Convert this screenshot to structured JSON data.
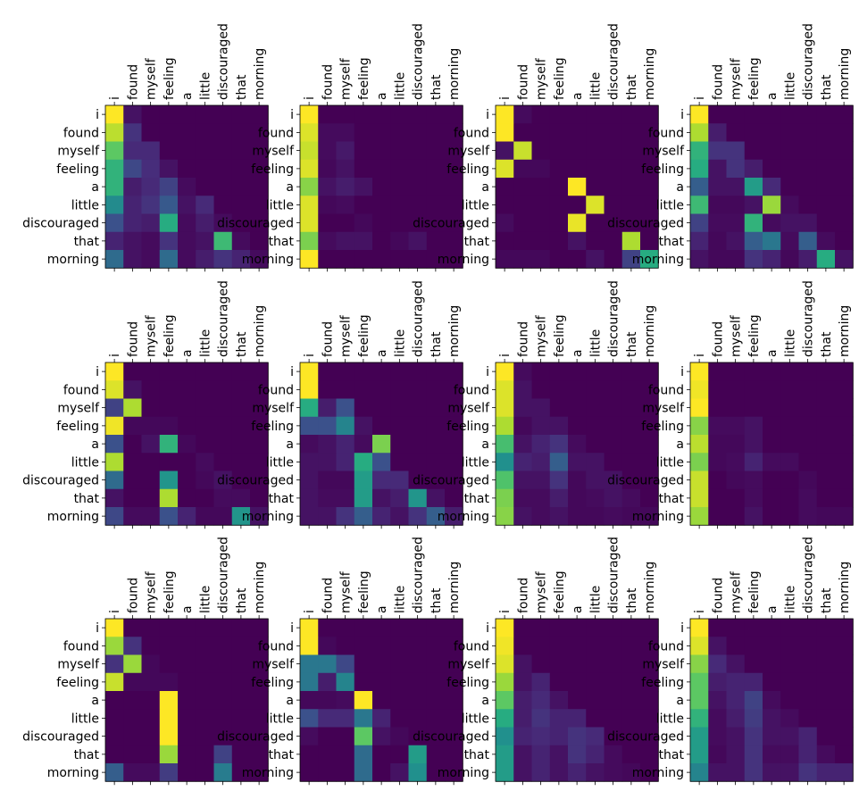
{
  "figure": {
    "background": "#ffffff",
    "colormap": "viridis",
    "colorscale": [
      "#440154",
      "#472c7a",
      "#3b518b",
      "#2c718e",
      "#21908d",
      "#27ad81",
      "#5cc863",
      "#aadc32",
      "#fde725"
    ],
    "ncols": 4,
    "nrows": 3
  },
  "chart_data": {
    "type": "heatmap",
    "xticklabels": [
      "i",
      "found",
      "myself",
      "feeling",
      "a",
      "little",
      "discouraged",
      "that",
      "morning"
    ],
    "yticklabels": [
      "i",
      "found",
      "myself",
      "feeling",
      "a",
      "little",
      "discouraged",
      "that",
      "morning"
    ],
    "vmin": 0,
    "vmax": 1,
    "xaxis_position": "top",
    "grid": false,
    "legend": "none",
    "heads": [
      [
        [
          1.0,
          0.05,
          0.0,
          0.0,
          0.0,
          0.0,
          0.0,
          0.0,
          0.0
        ],
        [
          0.9,
          0.15,
          0.0,
          0.0,
          0.0,
          0.0,
          0.0,
          0.0,
          0.0
        ],
        [
          0.75,
          0.12,
          0.12,
          0.0,
          0.0,
          0.0,
          0.0,
          0.0,
          0.0
        ],
        [
          0.65,
          0.22,
          0.13,
          0.05,
          0.0,
          0.0,
          0.0,
          0.0,
          0.0
        ],
        [
          0.65,
          0.08,
          0.12,
          0.2,
          0.03,
          0.0,
          0.0,
          0.0,
          0.0
        ],
        [
          0.48,
          0.1,
          0.15,
          0.28,
          0.05,
          0.12,
          0.0,
          0.0,
          0.0
        ],
        [
          0.25,
          0.1,
          0.08,
          0.62,
          0.03,
          0.08,
          0.03,
          0.0,
          0.0
        ],
        [
          0.1,
          0.05,
          0.03,
          0.15,
          0.03,
          0.05,
          0.68,
          0.03,
          0.0
        ],
        [
          0.35,
          0.05,
          0.03,
          0.35,
          0.03,
          0.08,
          0.15,
          0.1,
          0.03
        ]
      ],
      [
        [
          1.0,
          0.0,
          0.0,
          0.0,
          0.0,
          0.0,
          0.0,
          0.0,
          0.0
        ],
        [
          0.95,
          0.03,
          0.03,
          0.0,
          0.0,
          0.0,
          0.0,
          0.0,
          0.0
        ],
        [
          0.92,
          0.03,
          0.07,
          0.0,
          0.0,
          0.0,
          0.0,
          0.0,
          0.0
        ],
        [
          0.95,
          0.02,
          0.05,
          0.0,
          0.0,
          0.0,
          0.0,
          0.0,
          0.0
        ],
        [
          0.82,
          0.05,
          0.08,
          0.05,
          0.0,
          0.0,
          0.0,
          0.0,
          0.0
        ],
        [
          0.95,
          0.02,
          0.03,
          0.0,
          0.0,
          0.0,
          0.0,
          0.0,
          0.0
        ],
        [
          0.95,
          0.0,
          0.0,
          0.02,
          0.0,
          0.0,
          0.0,
          0.0,
          0.0
        ],
        [
          0.8,
          0.03,
          0.05,
          0.05,
          0.0,
          0.02,
          0.05,
          0.0,
          0.0
        ],
        [
          1.0,
          0.0,
          0.0,
          0.0,
          0.0,
          0.0,
          0.0,
          0.0,
          0.0
        ]
      ],
      [
        [
          1.0,
          0.03,
          0.0,
          0.0,
          0.0,
          0.0,
          0.0,
          0.0,
          0.0
        ],
        [
          1.0,
          0.0,
          0.0,
          0.0,
          0.0,
          0.0,
          0.0,
          0.0,
          0.0
        ],
        [
          0.05,
          0.92,
          0.0,
          0.0,
          0.0,
          0.0,
          0.0,
          0.0,
          0.0
        ],
        [
          0.95,
          0.02,
          0.02,
          0.0,
          0.0,
          0.0,
          0.0,
          0.0,
          0.0
        ],
        [
          0.0,
          0.0,
          0.0,
          0.0,
          1.0,
          0.0,
          0.0,
          0.0,
          0.0
        ],
        [
          0.0,
          0.0,
          0.0,
          0.0,
          0.0,
          0.95,
          0.0,
          0.0,
          0.0
        ],
        [
          0.03,
          0.0,
          0.0,
          0.0,
          0.97,
          0.0,
          0.0,
          0.0,
          0.0
        ],
        [
          0.0,
          0.0,
          0.0,
          0.0,
          0.05,
          0.0,
          0.0,
          0.88,
          0.0
        ],
        [
          0.02,
          0.02,
          0.02,
          0.0,
          0.0,
          0.05,
          0.0,
          0.2,
          0.62
        ]
      ],
      [
        [
          1.0,
          0.0,
          0.0,
          0.0,
          0.0,
          0.0,
          0.0,
          0.0,
          0.0
        ],
        [
          0.88,
          0.08,
          0.0,
          0.0,
          0.0,
          0.0,
          0.0,
          0.0,
          0.0
        ],
        [
          0.65,
          0.15,
          0.15,
          0.0,
          0.0,
          0.0,
          0.0,
          0.0,
          0.0
        ],
        [
          0.62,
          0.05,
          0.15,
          0.08,
          0.0,
          0.0,
          0.0,
          0.0,
          0.0
        ],
        [
          0.3,
          0.05,
          0.05,
          0.55,
          0.12,
          0.0,
          0.0,
          0.0,
          0.0
        ],
        [
          0.68,
          0.02,
          0.02,
          0.05,
          0.85,
          0.03,
          0.0,
          0.0,
          0.0
        ],
        [
          0.2,
          0.03,
          0.03,
          0.65,
          0.03,
          0.05,
          0.05,
          0.0,
          0.0
        ],
        [
          0.1,
          0.02,
          0.05,
          0.3,
          0.4,
          0.03,
          0.3,
          0.03,
          0.0
        ],
        [
          0.05,
          0.02,
          0.02,
          0.15,
          0.1,
          0.02,
          0.08,
          0.62,
          0.05
        ]
      ],
      [
        [
          1.0,
          0.0,
          0.0,
          0.0,
          0.0,
          0.0,
          0.0,
          0.0,
          0.0
        ],
        [
          0.95,
          0.05,
          0.0,
          0.0,
          0.0,
          0.0,
          0.0,
          0.0,
          0.0
        ],
        [
          0.2,
          0.88,
          0.0,
          0.0,
          0.0,
          0.0,
          0.0,
          0.0,
          0.0
        ],
        [
          0.98,
          0.02,
          0.02,
          0.02,
          0.0,
          0.0,
          0.0,
          0.0,
          0.0
        ],
        [
          0.25,
          0.0,
          0.05,
          0.65,
          0.02,
          0.0,
          0.0,
          0.0,
          0.0
        ],
        [
          0.88,
          0.0,
          0.0,
          0.0,
          0.0,
          0.03,
          0.0,
          0.0,
          0.0
        ],
        [
          0.35,
          0.0,
          0.0,
          0.52,
          0.0,
          0.02,
          0.05,
          0.0,
          0.0
        ],
        [
          0.05,
          0.0,
          0.0,
          0.88,
          0.0,
          0.0,
          0.03,
          0.03,
          0.0
        ],
        [
          0.22,
          0.03,
          0.03,
          0.25,
          0.1,
          0.02,
          0.02,
          0.52,
          0.05
        ]
      ],
      [
        [
          1.0,
          0.0,
          0.0,
          0.0,
          0.0,
          0.0,
          0.0,
          0.0,
          0.0
        ],
        [
          1.0,
          0.0,
          0.0,
          0.0,
          0.0,
          0.0,
          0.0,
          0.0,
          0.0
        ],
        [
          0.62,
          0.08,
          0.25,
          0.0,
          0.0,
          0.0,
          0.0,
          0.0,
          0.0
        ],
        [
          0.25,
          0.25,
          0.45,
          0.05,
          0.0,
          0.0,
          0.0,
          0.0,
          0.0
        ],
        [
          0.03,
          0.05,
          0.1,
          0.03,
          0.8,
          0.0,
          0.0,
          0.0,
          0.0
        ],
        [
          0.05,
          0.05,
          0.1,
          0.62,
          0.25,
          0.0,
          0.0,
          0.0,
          0.0
        ],
        [
          0.05,
          0.02,
          0.02,
          0.55,
          0.12,
          0.12,
          0.0,
          0.0,
          0.0
        ],
        [
          0.05,
          0.03,
          0.03,
          0.55,
          0.05,
          0.08,
          0.52,
          0.05,
          0.0
        ],
        [
          0.05,
          0.05,
          0.15,
          0.3,
          0.1,
          0.05,
          0.15,
          0.3,
          0.08
        ]
      ],
      [
        [
          1.0,
          0.03,
          0.0,
          0.0,
          0.0,
          0.0,
          0.0,
          0.0,
          0.0
        ],
        [
          0.95,
          0.05,
          0.0,
          0.0,
          0.0,
          0.0,
          0.0,
          0.0,
          0.0
        ],
        [
          0.95,
          0.05,
          0.05,
          0.0,
          0.0,
          0.0,
          0.0,
          0.0,
          0.0
        ],
        [
          0.88,
          0.02,
          0.05,
          0.05,
          0.0,
          0.0,
          0.0,
          0.0,
          0.0
        ],
        [
          0.7,
          0.05,
          0.1,
          0.15,
          0.03,
          0.0,
          0.0,
          0.0,
          0.0
        ],
        [
          0.5,
          0.1,
          0.08,
          0.3,
          0.05,
          0.05,
          0.0,
          0.0,
          0.0
        ],
        [
          0.72,
          0.05,
          0.05,
          0.15,
          0.02,
          0.05,
          0.05,
          0.0,
          0.0
        ],
        [
          0.8,
          0.03,
          0.03,
          0.08,
          0.02,
          0.03,
          0.05,
          0.03,
          0.0
        ],
        [
          0.82,
          0.05,
          0.03,
          0.05,
          0.02,
          0.02,
          0.03,
          0.02,
          0.02
        ]
      ],
      [
        [
          1.0,
          0.0,
          0.0,
          0.0,
          0.0,
          0.0,
          0.0,
          0.0,
          0.0
        ],
        [
          0.98,
          0.0,
          0.0,
          0.0,
          0.0,
          0.0,
          0.0,
          0.0,
          0.0
        ],
        [
          1.0,
          0.0,
          0.0,
          0.0,
          0.0,
          0.0,
          0.0,
          0.0,
          0.0
        ],
        [
          0.82,
          0.03,
          0.03,
          0.05,
          0.0,
          0.0,
          0.0,
          0.0,
          0.0
        ],
        [
          0.9,
          0.02,
          0.02,
          0.05,
          0.0,
          0.0,
          0.0,
          0.0,
          0.0
        ],
        [
          0.8,
          0.02,
          0.03,
          0.1,
          0.03,
          0.03,
          0.0,
          0.0,
          0.0
        ],
        [
          0.92,
          0.0,
          0.02,
          0.03,
          0.0,
          0.0,
          0.02,
          0.0,
          0.0
        ],
        [
          0.92,
          0.0,
          0.0,
          0.03,
          0.0,
          0.0,
          0.03,
          0.0,
          0.0
        ],
        [
          0.85,
          0.0,
          0.0,
          0.05,
          0.0,
          0.0,
          0.03,
          0.02,
          0.02
        ]
      ],
      [
        [
          1.0,
          0.0,
          0.0,
          0.0,
          0.0,
          0.0,
          0.0,
          0.0,
          0.0
        ],
        [
          0.85,
          0.15,
          0.0,
          0.0,
          0.0,
          0.0,
          0.0,
          0.0,
          0.0
        ],
        [
          0.15,
          0.85,
          0.02,
          0.0,
          0.0,
          0.0,
          0.0,
          0.0,
          0.0
        ],
        [
          0.92,
          0.02,
          0.02,
          0.02,
          0.0,
          0.0,
          0.0,
          0.0,
          0.0
        ],
        [
          0.0,
          0.0,
          0.0,
          1.0,
          0.0,
          0.0,
          0.0,
          0.0,
          0.0
        ],
        [
          0.0,
          0.0,
          0.0,
          1.0,
          0.0,
          0.0,
          0.0,
          0.0,
          0.0
        ],
        [
          0.0,
          0.0,
          0.0,
          1.0,
          0.0,
          0.0,
          0.0,
          0.0,
          0.0
        ],
        [
          0.0,
          0.0,
          0.0,
          0.85,
          0.0,
          0.0,
          0.2,
          0.0,
          0.0
        ],
        [
          0.3,
          0.03,
          0.03,
          0.18,
          0.0,
          0.0,
          0.42,
          0.0,
          0.0
        ]
      ],
      [
        [
          1.0,
          0.0,
          0.0,
          0.0,
          0.0,
          0.0,
          0.0,
          0.0,
          0.0
        ],
        [
          1.0,
          0.02,
          0.0,
          0.0,
          0.0,
          0.0,
          0.0,
          0.0,
          0.0
        ],
        [
          0.4,
          0.4,
          0.22,
          0.0,
          0.0,
          0.0,
          0.0,
          0.0,
          0.0
        ],
        [
          0.4,
          0.08,
          0.45,
          0.0,
          0.0,
          0.0,
          0.0,
          0.0,
          0.0
        ],
        [
          0.02,
          0.02,
          0.03,
          1.0,
          0.0,
          0.0,
          0.0,
          0.0,
          0.0
        ],
        [
          0.25,
          0.12,
          0.12,
          0.4,
          0.1,
          0.0,
          0.0,
          0.0,
          0.0
        ],
        [
          0.03,
          0.0,
          0.0,
          0.75,
          0.05,
          0.02,
          0.0,
          0.0,
          0.0
        ],
        [
          0.0,
          0.0,
          0.0,
          0.35,
          0.0,
          0.0,
          0.55,
          0.0,
          0.0
        ],
        [
          0.0,
          0.0,
          0.0,
          0.35,
          0.0,
          0.05,
          0.5,
          0.0,
          0.0
        ]
      ],
      [
        [
          1.0,
          0.0,
          0.0,
          0.0,
          0.0,
          0.0,
          0.0,
          0.0,
          0.0
        ],
        [
          0.98,
          0.0,
          0.0,
          0.0,
          0.0,
          0.0,
          0.0,
          0.0,
          0.0
        ],
        [
          0.95,
          0.05,
          0.0,
          0.0,
          0.0,
          0.0,
          0.0,
          0.0,
          0.0
        ],
        [
          0.85,
          0.05,
          0.1,
          0.0,
          0.0,
          0.0,
          0.0,
          0.0,
          0.0
        ],
        [
          0.75,
          0.08,
          0.12,
          0.05,
          0.0,
          0.0,
          0.0,
          0.0,
          0.0
        ],
        [
          0.62,
          0.08,
          0.15,
          0.1,
          0.1,
          0.0,
          0.0,
          0.0,
          0.0
        ],
        [
          0.5,
          0.1,
          0.12,
          0.1,
          0.15,
          0.12,
          0.0,
          0.0,
          0.0
        ],
        [
          0.55,
          0.05,
          0.1,
          0.05,
          0.15,
          0.1,
          0.03,
          0.0,
          0.0
        ],
        [
          0.55,
          0.05,
          0.1,
          0.05,
          0.1,
          0.05,
          0.03,
          0.02,
          0.0
        ]
      ],
      [
        [
          1.0,
          0.0,
          0.0,
          0.0,
          0.0,
          0.0,
          0.0,
          0.0,
          0.0
        ],
        [
          0.95,
          0.05,
          0.0,
          0.0,
          0.0,
          0.0,
          0.0,
          0.0,
          0.0
        ],
        [
          0.82,
          0.12,
          0.05,
          0.0,
          0.0,
          0.0,
          0.0,
          0.0,
          0.0
        ],
        [
          0.75,
          0.08,
          0.1,
          0.1,
          0.0,
          0.0,
          0.0,
          0.0,
          0.0
        ],
        [
          0.75,
          0.05,
          0.1,
          0.2,
          0.03,
          0.0,
          0.0,
          0.0,
          0.0
        ],
        [
          0.65,
          0.03,
          0.08,
          0.18,
          0.05,
          0.03,
          0.0,
          0.0,
          0.0
        ],
        [
          0.55,
          0.03,
          0.05,
          0.15,
          0.05,
          0.05,
          0.1,
          0.0,
          0.0
        ],
        [
          0.55,
          0.02,
          0.05,
          0.15,
          0.03,
          0.03,
          0.1,
          0.03,
          0.0
        ],
        [
          0.45,
          0.05,
          0.05,
          0.15,
          0.05,
          0.05,
          0.15,
          0.1,
          0.1
        ]
      ]
    ]
  }
}
